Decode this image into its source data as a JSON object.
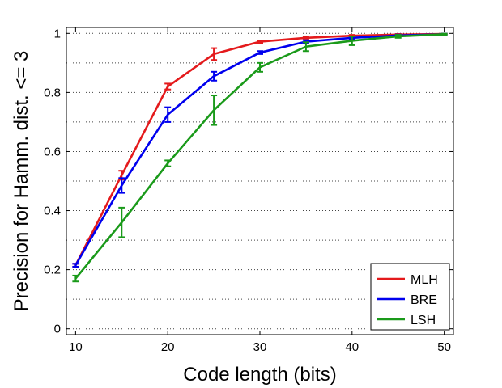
{
  "chart_data": {
    "type": "line",
    "title": "",
    "xlabel": "Code length (bits)",
    "ylabel": "Precision for Hamm. dist. <= 3",
    "xlim": [
      9,
      51
    ],
    "ylim": [
      -0.02,
      1.02
    ],
    "x_ticks": [
      10,
      20,
      30,
      40,
      50
    ],
    "y_ticks": [
      0,
      0.2,
      0.4,
      0.6,
      0.8,
      1
    ],
    "x_tick_labels": [
      "10",
      "20",
      "30",
      "40",
      "50"
    ],
    "y_tick_labels": [
      "0",
      "0.2",
      "0.4",
      "0.6",
      "0.8",
      "1"
    ],
    "grid": "horizontal-dotted",
    "legend_position": "bottom-right",
    "x": [
      10,
      15,
      20,
      25,
      30,
      35,
      40,
      45,
      50
    ],
    "series": [
      {
        "name": "MLH",
        "color": "#e41a1c",
        "values": [
          0.215,
          0.52,
          0.82,
          0.93,
          0.972,
          0.985,
          0.992,
          0.996,
          0.998
        ],
        "errors": [
          0.005,
          0.015,
          0.01,
          0.02,
          0.004,
          0.003,
          0.003,
          0.002,
          0.001
        ]
      },
      {
        "name": "BRE",
        "color": "#0000ee",
        "values": [
          0.215,
          0.485,
          0.725,
          0.855,
          0.935,
          0.972,
          0.985,
          0.993,
          0.997
        ],
        "errors": [
          0.005,
          0.025,
          0.025,
          0.015,
          0.005,
          0.005,
          0.004,
          0.003,
          0.002
        ]
      },
      {
        "name": "LSH",
        "color": "#1a9a1a",
        "values": [
          0.17,
          0.36,
          0.56,
          0.74,
          0.885,
          0.955,
          0.975,
          0.99,
          0.997
        ],
        "errors": [
          0.01,
          0.05,
          0.01,
          0.05,
          0.015,
          0.015,
          0.015,
          0.005,
          0.002
        ]
      }
    ]
  }
}
